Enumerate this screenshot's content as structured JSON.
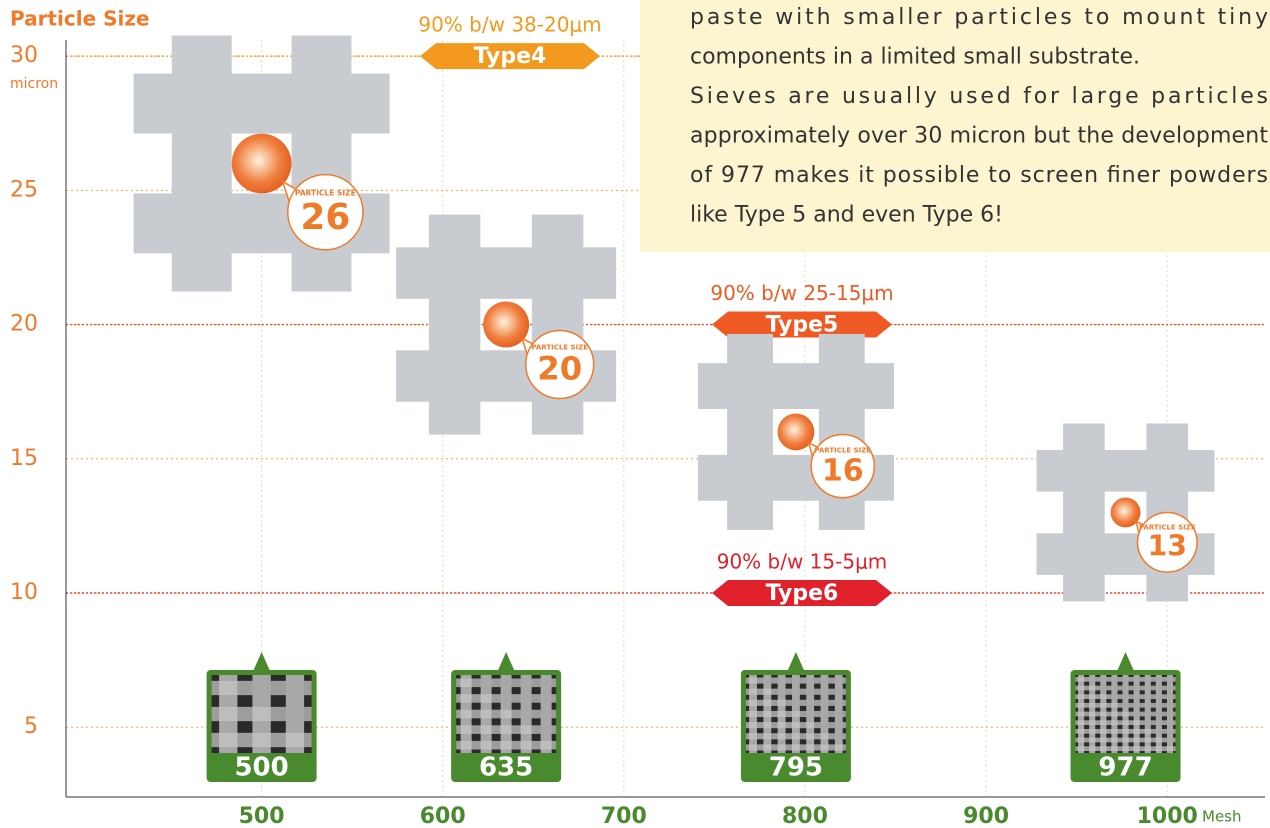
{
  "chart_data": {
    "type": "scatter",
    "y_label": "Particle Size",
    "y_unit": "micron",
    "x_unit": "Mesh",
    "x": [
      500,
      635,
      795,
      977
    ],
    "y": [
      26,
      20,
      16,
      13
    ],
    "data_label_caption": "PARTICLE SIZE",
    "color": "#ef7a2a",
    "xlim": [
      392,
      1054
    ],
    "ylim": [
      2.4,
      30.6
    ],
    "xticks": [
      500,
      600,
      700,
      800,
      900,
      1000
    ],
    "yticks": [
      5,
      10,
      15,
      20,
      25,
      30
    ],
    "grid": true,
    "bands": [
      {
        "label": "Type4",
        "range": "90% b/w 38-20μm",
        "value": 30,
        "color": "#f39a1e"
      },
      {
        "label": "Type5",
        "range": "90% b/w 25-15μm",
        "value": 20,
        "color": "#ef5a24"
      },
      {
        "label": "Type6",
        "range": "90% b/w 15-5μm",
        "value": 10,
        "color": "#e0202a"
      }
    ],
    "annotation_text": [
      "paste with smaller particles to mount tiny",
      "components in a limited small substrate.",
      "Sieves are usually used for large particles",
      "approximately over 30 micron but the development",
      "of 977 makes it possible to screen finer powders",
      "like Type 5 and even Type 6!"
    ]
  }
}
